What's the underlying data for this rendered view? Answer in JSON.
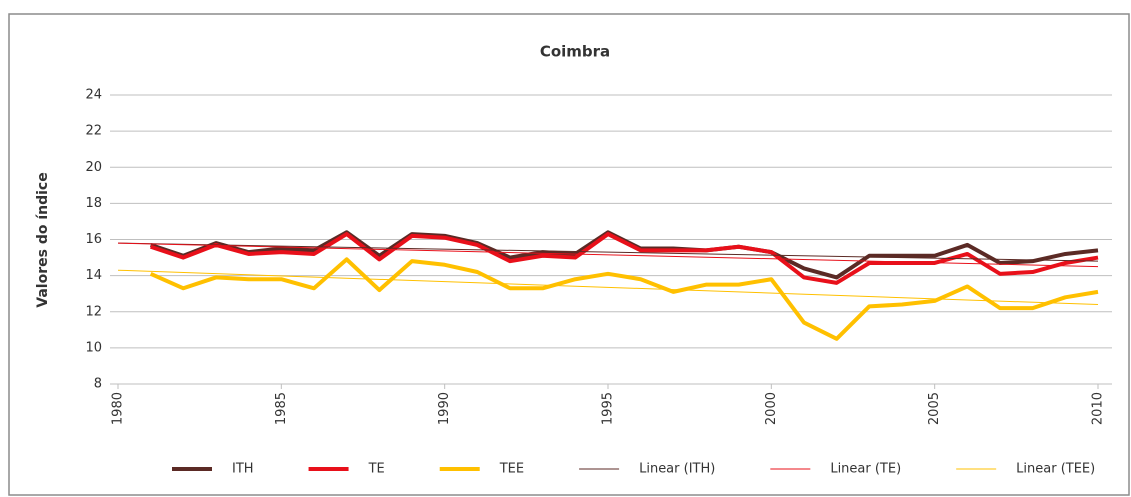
{
  "chart_data": {
    "type": "line",
    "title": "Coimbra",
    "y_label": "Valores do índice",
    "x": [
      1981,
      1982,
      1983,
      1984,
      1985,
      1986,
      1987,
      1988,
      1989,
      1990,
      1991,
      1992,
      1993,
      1994,
      1995,
      1996,
      1997,
      1998,
      1999,
      2000,
      2001,
      2002,
      2003,
      2004,
      2005,
      2006,
      2007,
      2008,
      2009,
      2010
    ],
    "series": [
      {
        "name": "ITH",
        "color": "#5b2a25",
        "width": 4,
        "values": [
          15.7,
          15.1,
          15.8,
          15.3,
          15.5,
          15.4,
          16.4,
          15.1,
          16.3,
          16.2,
          15.8,
          15.0,
          15.3,
          15.2,
          16.4,
          15.5,
          15.5,
          15.4,
          15.6,
          15.3,
          14.4,
          13.9,
          15.1,
          15.1,
          15.1,
          15.7,
          14.7,
          14.8,
          15.2,
          15.4
        ]
      },
      {
        "name": "TE",
        "color": "#e8101a",
        "width": 4,
        "values": [
          15.6,
          15.0,
          15.7,
          15.2,
          15.3,
          15.2,
          16.3,
          14.9,
          16.2,
          16.1,
          15.7,
          14.8,
          15.1,
          15.0,
          16.3,
          15.4,
          15.4,
          15.4,
          15.6,
          15.3,
          13.9,
          13.6,
          14.7,
          14.7,
          14.7,
          15.2,
          14.1,
          14.2,
          14.7,
          15.0
        ]
      },
      {
        "name": "TEE",
        "color": "#ffc000",
        "width": 4,
        "values": [
          14.1,
          13.3,
          13.9,
          13.8,
          13.8,
          13.3,
          14.9,
          13.2,
          14.8,
          14.6,
          14.2,
          13.3,
          13.3,
          13.8,
          14.1,
          13.8,
          13.1,
          13.5,
          13.5,
          13.8,
          11.4,
          10.5,
          12.3,
          12.4,
          12.6,
          13.4,
          12.2,
          12.2,
          12.8,
          13.1
        ]
      },
      {
        "name": "Linear (ITH)",
        "color": "#5b2a25",
        "width": 1,
        "x": [
          1980,
          2010
        ],
        "values": [
          15.8,
          14.8
        ]
      },
      {
        "name": "Linear (TE)",
        "color": "#e8101a",
        "width": 1,
        "x": [
          1980,
          2010
        ],
        "values": [
          15.8,
          14.5
        ]
      },
      {
        "name": "Linear (TEE)",
        "color": "#ffc000",
        "width": 1,
        "x": [
          1980,
          2010
        ],
        "values": [
          14.3,
          12.4
        ]
      }
    ],
    "xlim": [
      1980,
      2010
    ],
    "xticks": [
      1980,
      1985,
      1990,
      1995,
      2000,
      2005,
      2010
    ],
    "ylim": [
      8,
      24
    ],
    "yticks": [
      8,
      10,
      12,
      14,
      16,
      18,
      20,
      22,
      24
    ],
    "grid": true,
    "legend": "bottom"
  }
}
